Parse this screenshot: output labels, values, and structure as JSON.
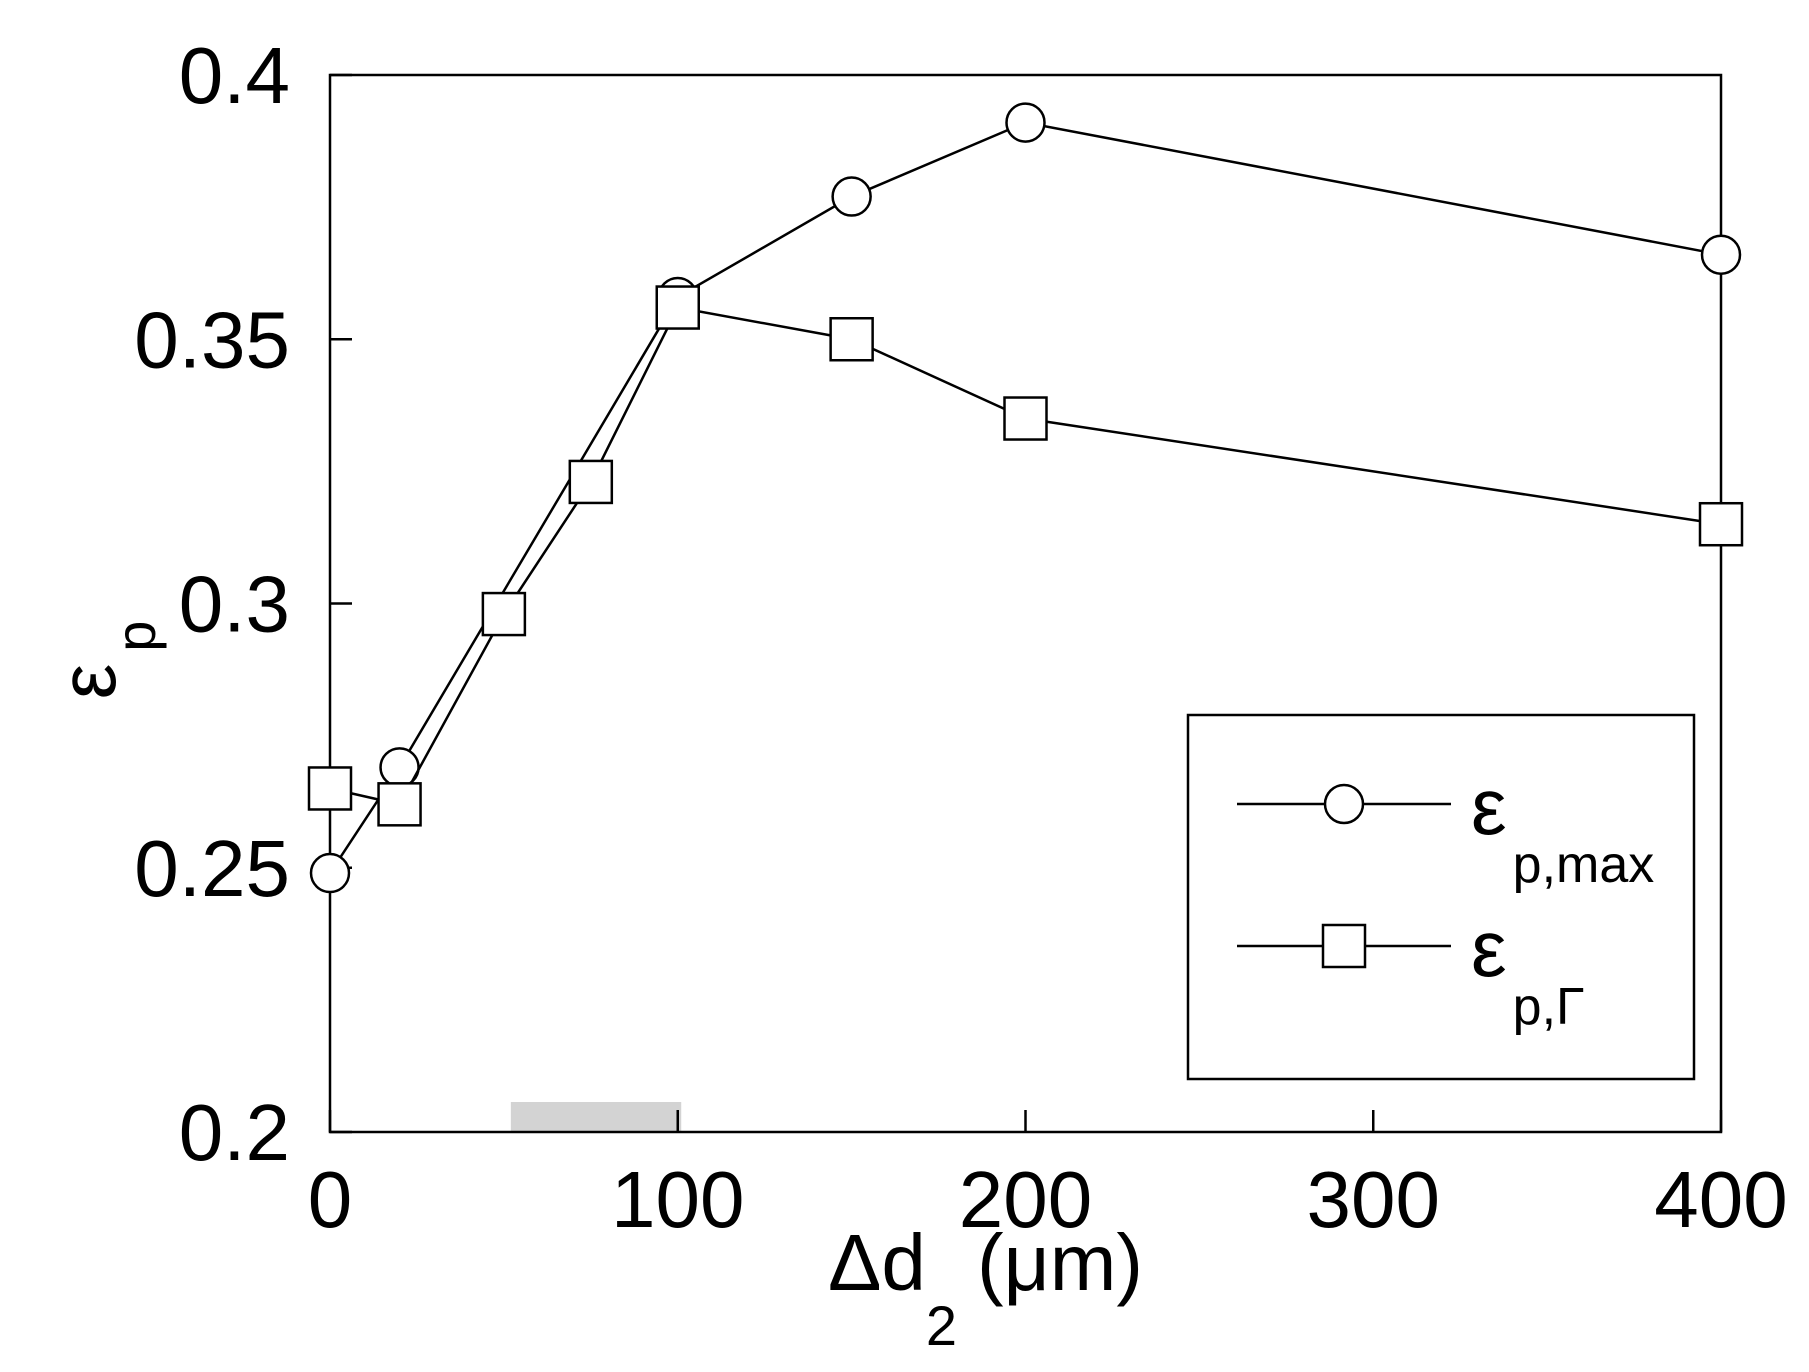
{
  "chart_data": {
    "type": "line",
    "x_label": {
      "main": "Δd",
      "subscript": "2",
      "unit": "(μm)"
    },
    "y_label": {
      "main": "ε",
      "subscript": "p"
    },
    "series": [
      {
        "name": "εp,max",
        "marker": "circle",
        "color": "#000000",
        "x": [
          0,
          20,
          100,
          150,
          200,
          400
        ],
        "values": [
          0.249,
          0.269,
          0.358,
          0.377,
          0.391,
          0.366
        ]
      },
      {
        "name": "εp,Γ",
        "marker": "square",
        "color": "#000000",
        "x": [
          0,
          20,
          50,
          75,
          100,
          150,
          200,
          400
        ],
        "values": [
          0.265,
          0.262,
          0.298,
          0.323,
          0.356,
          0.35,
          0.335,
          0.315
        ]
      }
    ],
    "highlight_x": [
      52,
      101
    ],
    "xlim": [
      0,
      400
    ],
    "xticks": [
      0,
      100,
      200,
      300,
      400
    ],
    "ylim": [
      0.2,
      0.4
    ],
    "yticks": [
      0.2,
      0.25,
      0.3,
      0.35,
      0.4
    ],
    "legend": "lower right",
    "grid": false
  }
}
